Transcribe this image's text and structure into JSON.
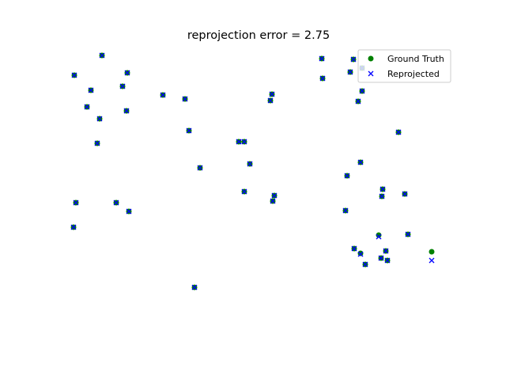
{
  "chart_data": {
    "type": "scatter",
    "title": "reprojection error = 2.75",
    "xlabel": "",
    "ylabel": "",
    "axes_visible": false,
    "grid": false,
    "legend_position": "upper-right",
    "xlim": [
      80,
      560
    ],
    "ylim": [
      65,
      365
    ],
    "series": [
      {
        "name": "Ground Truth",
        "marker": "circle",
        "color": "#008000",
        "points": [
          [
            129,
            70
          ],
          [
            94,
            95
          ],
          [
            161,
            92
          ],
          [
            115,
            114
          ],
          [
            155,
            109
          ],
          [
            110,
            135
          ],
          [
            160,
            140
          ],
          [
            126,
            150
          ],
          [
            123,
            181
          ],
          [
            206,
            120
          ],
          [
            234,
            125
          ],
          [
            239,
            165
          ],
          [
            253,
            212
          ],
          [
            344,
            119
          ],
          [
            342,
            127
          ],
          [
            302,
            179
          ],
          [
            309,
            179
          ],
          [
            316,
            207
          ],
          [
            309,
            242
          ],
          [
            347,
            247
          ],
          [
            345,
            254
          ],
          [
            407,
            74
          ],
          [
            447,
            75
          ],
          [
            443,
            91
          ],
          [
            408,
            99
          ],
          [
            458,
            86
          ],
          [
            458,
            115
          ],
          [
            453,
            128
          ],
          [
            504,
            167
          ],
          [
            456,
            205
          ],
          [
            439,
            222
          ],
          [
            484,
            239
          ],
          [
            483,
            248
          ],
          [
            512,
            245
          ],
          [
            437,
            266
          ],
          [
            479,
            297
          ],
          [
            516,
            296
          ],
          [
            448,
            314
          ],
          [
            456,
            320
          ],
          [
            488,
            317
          ],
          [
            482,
            326
          ],
          [
            490,
            329
          ],
          [
            462,
            334
          ],
          [
            96,
            256
          ],
          [
            147,
            256
          ],
          [
            163,
            267
          ],
          [
            93,
            287
          ],
          [
            246,
            363
          ],
          [
            546,
            318
          ]
        ]
      },
      {
        "name": "Reprojected",
        "marker": "x",
        "color": "#0000ff",
        "points": [
          [
            129,
            70
          ],
          [
            94,
            95
          ],
          [
            161,
            92
          ],
          [
            115,
            114
          ],
          [
            155,
            109
          ],
          [
            110,
            135
          ],
          [
            160,
            140
          ],
          [
            126,
            150
          ],
          [
            123,
            181
          ],
          [
            206,
            120
          ],
          [
            234,
            125
          ],
          [
            239,
            165
          ],
          [
            253,
            212
          ],
          [
            344,
            119
          ],
          [
            342,
            127
          ],
          [
            302,
            179
          ],
          [
            309,
            179
          ],
          [
            316,
            207
          ],
          [
            309,
            242
          ],
          [
            347,
            247
          ],
          [
            345,
            254
          ],
          [
            407,
            74
          ],
          [
            447,
            75
          ],
          [
            443,
            91
          ],
          [
            408,
            99
          ],
          [
            458,
            86
          ],
          [
            458,
            115
          ],
          [
            453,
            128
          ],
          [
            504,
            167
          ],
          [
            456,
            205
          ],
          [
            439,
            222
          ],
          [
            484,
            239
          ],
          [
            483,
            248
          ],
          [
            512,
            245
          ],
          [
            437,
            266
          ],
          [
            479,
            299
          ],
          [
            516,
            296
          ],
          [
            448,
            314
          ],
          [
            456,
            321
          ],
          [
            488,
            317
          ],
          [
            482,
            326
          ],
          [
            490,
            329
          ],
          [
            462,
            334
          ],
          [
            96,
            256
          ],
          [
            147,
            256
          ],
          [
            163,
            267
          ],
          [
            93,
            287
          ],
          [
            246,
            363
          ],
          [
            546,
            329
          ]
        ]
      }
    ]
  }
}
